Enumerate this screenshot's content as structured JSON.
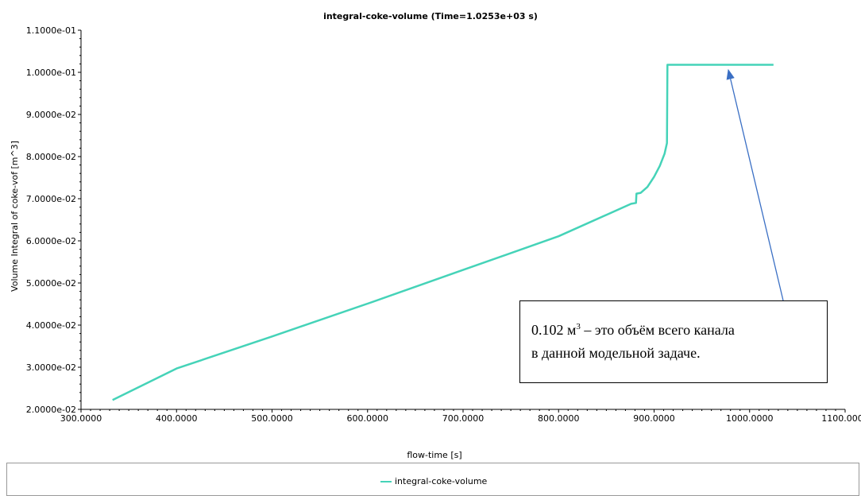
{
  "chart_data": {
    "type": "line",
    "title": "integral-coke-volume (Time=1.0253e+03 s)",
    "xlabel": "flow-time [s]",
    "ylabel": "Volume Integral of coke-vof [m^3]",
    "xlim": [
      300,
      1100
    ],
    "ylim": [
      0.02,
      0.11
    ],
    "x_ticks": [
      300,
      400,
      500,
      600,
      700,
      800,
      900,
      1000,
      1100
    ],
    "x_tick_labels": [
      "300.0000",
      "400.0000",
      "500.0000",
      "600.0000",
      "700.0000",
      "800.0000",
      "900.0000",
      "1000.0000",
      "1100.0000"
    ],
    "y_ticks": [
      0.02,
      0.03,
      0.04,
      0.05,
      0.06,
      0.07,
      0.08,
      0.09,
      0.1,
      0.11
    ],
    "y_tick_labels": [
      "2.0000e-02",
      "3.0000e-02",
      "4.0000e-02",
      "5.0000e-02",
      "6.0000e-02",
      "7.0000e-02",
      "8.0000e-02",
      "9.0000e-02",
      "1.0000e-01",
      "1.1000e-01"
    ],
    "grid": false,
    "legend_position": "bottom",
    "series": [
      {
        "name": "integral-coke-volume",
        "color": "#45d3b8",
        "x": [
          333,
          400,
          500,
          600,
          700,
          800,
          876,
          881,
          881.5,
          886,
          893,
          900,
          906,
          911,
          913.5,
          914,
          914.5,
          1025
        ],
        "y": [
          0.0222,
          0.0297,
          0.0373,
          0.0451,
          0.0531,
          0.0611,
          0.0688,
          0.069,
          0.0712,
          0.0714,
          0.0728,
          0.0752,
          0.0778,
          0.0807,
          0.0832,
          0.1018,
          0.1018,
          0.1018
        ]
      }
    ],
    "legend": [
      "integral-coke-volume"
    ]
  },
  "annotation": {
    "line1_text": "0.102 м",
    "line1_sup": "3",
    "line1_rest": " – это объём всего канала",
    "line2": "в данной модельной задаче."
  }
}
